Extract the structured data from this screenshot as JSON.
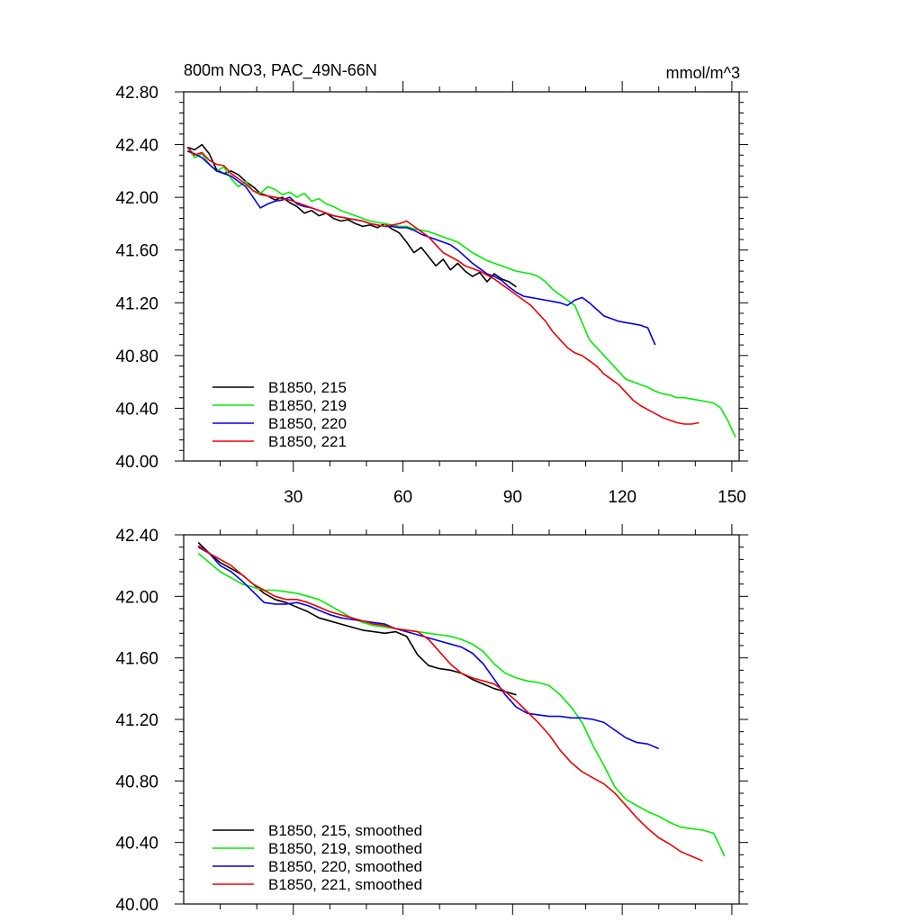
{
  "chart_data": [
    {
      "type": "line",
      "title": "800m NO3, PAC_49N-66N",
      "units": "mmol/m^3",
      "xlim": [
        0,
        152
      ],
      "ylim": [
        40.0,
        42.8
      ],
      "yticks": [
        "40.00",
        "40.40",
        "40.80",
        "41.20",
        "41.60",
        "42.00",
        "42.40",
        "42.80"
      ],
      "xticks": [
        "30",
        "60",
        "90",
        "120",
        "150"
      ],
      "legend_position": "bottom-left",
      "series": [
        {
          "name": "B1850, 215",
          "color": "#000000",
          "x": [
            1,
            3,
            5,
            7,
            9,
            11,
            13,
            15,
            17,
            19,
            21,
            23,
            25,
            27,
            29,
            31,
            33,
            35,
            37,
            39,
            41,
            43,
            45,
            47,
            49,
            51,
            53,
            55,
            57,
            59,
            61,
            63,
            65,
            67,
            69,
            71,
            73,
            75,
            77,
            79,
            81,
            83,
            85,
            87,
            89,
            91
          ],
          "y": [
            42.38,
            42.36,
            42.4,
            42.33,
            42.21,
            42.18,
            42.2,
            42.17,
            42.12,
            42.08,
            42.03,
            42.01,
            41.98,
            42.0,
            41.96,
            41.93,
            41.88,
            41.9,
            41.86,
            41.88,
            41.84,
            41.82,
            41.83,
            41.8,
            41.78,
            41.79,
            41.77,
            41.8,
            41.76,
            41.73,
            41.66,
            41.58,
            41.62,
            41.55,
            41.48,
            41.53,
            41.45,
            41.5,
            41.44,
            41.4,
            41.43,
            41.36,
            41.42,
            41.38,
            41.36,
            41.32
          ]
        },
        {
          "name": "B1850, 219",
          "color": "#00ee00",
          "x": [
            1,
            3,
            5,
            7,
            9,
            11,
            13,
            15,
            17,
            19,
            21,
            23,
            25,
            27,
            29,
            31,
            33,
            35,
            37,
            39,
            41,
            43,
            45,
            47,
            49,
            51,
            53,
            55,
            57,
            59,
            61,
            63,
            65,
            67,
            69,
            71,
            73,
            75,
            77,
            79,
            81,
            83,
            85,
            87,
            89,
            91,
            93,
            95,
            97,
            99,
            101,
            103,
            105,
            107,
            109,
            111,
            113,
            115,
            117,
            119,
            121,
            123,
            125,
            127,
            129,
            131,
            133,
            135,
            137,
            139,
            141,
            143,
            145,
            147,
            149,
            151
          ],
          "y": [
            42.38,
            42.3,
            42.33,
            42.25,
            42.2,
            42.23,
            42.14,
            42.08,
            42.12,
            42.05,
            42.03,
            42.08,
            42.06,
            42.02,
            42.04,
            42.0,
            42.03,
            41.97,
            41.99,
            41.95,
            41.93,
            41.9,
            41.88,
            41.86,
            41.84,
            41.82,
            41.81,
            41.8,
            41.79,
            41.78,
            41.78,
            41.76,
            41.75,
            41.74,
            41.72,
            41.7,
            41.68,
            41.66,
            41.62,
            41.58,
            41.55,
            41.52,
            41.5,
            41.48,
            41.46,
            41.44,
            41.43,
            41.42,
            41.4,
            41.36,
            41.3,
            41.26,
            41.22,
            41.18,
            41.05,
            40.92,
            40.86,
            40.8,
            40.74,
            40.68,
            40.62,
            40.6,
            40.58,
            40.56,
            40.53,
            40.51,
            40.5,
            40.48,
            40.48,
            40.47,
            40.46,
            40.45,
            40.44,
            40.4,
            40.3,
            40.18
          ]
        },
        {
          "name": "B1850, 220",
          "color": "#0000ee",
          "x": [
            1,
            3,
            5,
            7,
            9,
            11,
            13,
            15,
            17,
            19,
            21,
            23,
            25,
            27,
            29,
            31,
            33,
            35,
            37,
            39,
            41,
            43,
            45,
            47,
            49,
            51,
            53,
            55,
            57,
            59,
            61,
            63,
            65,
            67,
            69,
            71,
            73,
            75,
            77,
            79,
            81,
            83,
            85,
            87,
            89,
            91,
            93,
            95,
            97,
            99,
            101,
            103,
            105,
            107,
            109,
            111,
            113,
            115,
            117,
            119,
            121,
            123,
            125,
            127,
            129
          ],
          "y": [
            42.35,
            42.33,
            42.3,
            42.25,
            42.2,
            42.18,
            42.16,
            42.12,
            42.08,
            42.0,
            41.92,
            41.95,
            41.97,
            41.98,
            42.0,
            41.95,
            41.93,
            41.92,
            41.9,
            41.88,
            41.86,
            41.85,
            41.84,
            41.83,
            41.82,
            41.8,
            41.79,
            41.78,
            41.78,
            41.77,
            41.77,
            41.75,
            41.72,
            41.7,
            41.68,
            41.66,
            41.64,
            41.6,
            41.55,
            41.5,
            41.46,
            41.42,
            41.4,
            41.37,
            41.32,
            41.28,
            41.25,
            41.24,
            41.23,
            41.22,
            41.21,
            41.2,
            41.18,
            41.22,
            41.24,
            41.2,
            41.15,
            41.1,
            41.08,
            41.06,
            41.05,
            41.04,
            41.03,
            41.01,
            40.88
          ]
        },
        {
          "name": "B1850, 221",
          "color": "#ee0000",
          "x": [
            1,
            3,
            5,
            7,
            9,
            11,
            13,
            15,
            17,
            19,
            21,
            23,
            25,
            27,
            29,
            31,
            33,
            35,
            37,
            39,
            41,
            43,
            45,
            47,
            49,
            51,
            53,
            55,
            57,
            59,
            61,
            63,
            65,
            67,
            69,
            71,
            73,
            75,
            77,
            79,
            81,
            83,
            85,
            87,
            89,
            91,
            93,
            95,
            97,
            99,
            101,
            103,
            105,
            107,
            109,
            111,
            113,
            115,
            117,
            119,
            121,
            123,
            125,
            127,
            129,
            131,
            133,
            135,
            137,
            139,
            141
          ],
          "y": [
            42.38,
            42.32,
            42.34,
            42.28,
            42.25,
            42.24,
            42.18,
            42.14,
            42.1,
            42.05,
            42.02,
            42.01,
            42.0,
            41.99,
            41.98,
            41.96,
            41.94,
            41.92,
            41.9,
            41.88,
            41.86,
            41.85,
            41.84,
            41.83,
            41.82,
            41.8,
            41.79,
            41.78,
            41.79,
            41.8,
            41.82,
            41.78,
            41.74,
            41.7,
            41.64,
            41.58,
            41.55,
            41.52,
            41.48,
            41.46,
            41.44,
            41.41,
            41.38,
            41.34,
            41.3,
            41.26,
            41.22,
            41.18,
            41.12,
            41.06,
            40.98,
            40.92,
            40.86,
            40.82,
            40.8,
            40.76,
            40.72,
            40.66,
            40.62,
            40.58,
            40.52,
            40.46,
            40.42,
            40.39,
            40.36,
            40.33,
            40.31,
            40.29,
            40.28,
            40.28,
            40.29
          ]
        }
      ]
    },
    {
      "type": "line",
      "title": "",
      "xlim": [
        0,
        152
      ],
      "ylim": [
        40.0,
        42.4
      ],
      "yticks": [
        "40.00",
        "40.40",
        "40.80",
        "41.20",
        "41.60",
        "42.00",
        "42.40"
      ],
      "xticks": [],
      "legend_position": "bottom-left",
      "series": [
        {
          "name": "B1850, 215, smoothed",
          "color": "#000000",
          "x": [
            4,
            7,
            10,
            13,
            16,
            19,
            22,
            25,
            28,
            31,
            34,
            37,
            40,
            43,
            46,
            49,
            52,
            55,
            58,
            61,
            64,
            67,
            70,
            73,
            76,
            79,
            82,
            85,
            88,
            91
          ],
          "y": [
            42.35,
            42.28,
            42.22,
            42.18,
            42.14,
            42.08,
            42.02,
            41.98,
            41.96,
            41.93,
            41.9,
            41.86,
            41.84,
            41.82,
            41.8,
            41.78,
            41.77,
            41.76,
            41.77,
            41.74,
            41.62,
            41.55,
            41.53,
            41.52,
            41.5,
            41.46,
            41.43,
            41.4,
            41.38,
            41.36
          ]
        },
        {
          "name": "B1850, 219, smoothed",
          "color": "#00ee00",
          "x": [
            4,
            7,
            10,
            13,
            16,
            19,
            22,
            25,
            28,
            31,
            34,
            37,
            40,
            43,
            46,
            49,
            52,
            55,
            58,
            61,
            64,
            67,
            70,
            73,
            76,
            79,
            82,
            85,
            88,
            91,
            94,
            97,
            100,
            103,
            106,
            109,
            112,
            115,
            118,
            121,
            124,
            127,
            130,
            133,
            136,
            139,
            142,
            145,
            148
          ],
          "y": [
            42.28,
            42.22,
            42.16,
            42.12,
            42.08,
            42.06,
            42.04,
            42.04,
            42.03,
            42.02,
            42.0,
            41.98,
            41.94,
            41.9,
            41.86,
            41.83,
            41.81,
            41.8,
            41.79,
            41.78,
            41.77,
            41.76,
            41.75,
            41.74,
            41.72,
            41.69,
            41.64,
            41.56,
            41.5,
            41.47,
            41.45,
            41.44,
            41.42,
            41.36,
            41.28,
            41.18,
            41.03,
            40.9,
            40.76,
            40.68,
            40.64,
            40.6,
            40.57,
            40.53,
            40.5,
            40.49,
            40.48,
            40.46,
            40.31
          ]
        },
        {
          "name": "B1850, 220, smoothed",
          "color": "#0000ee",
          "x": [
            4,
            7,
            10,
            13,
            16,
            19,
            22,
            25,
            28,
            31,
            34,
            37,
            40,
            43,
            46,
            49,
            52,
            55,
            58,
            61,
            64,
            67,
            70,
            73,
            76,
            79,
            82,
            85,
            88,
            91,
            94,
            97,
            100,
            103,
            106,
            109,
            112,
            115,
            118,
            121,
            124,
            127,
            130
          ],
          "y": [
            42.32,
            42.28,
            42.2,
            42.16,
            42.1,
            42.03,
            41.96,
            41.95,
            41.95,
            41.96,
            41.94,
            41.91,
            41.88,
            41.86,
            41.85,
            41.84,
            41.83,
            41.82,
            41.79,
            41.77,
            41.75,
            41.73,
            41.71,
            41.69,
            41.67,
            41.63,
            41.56,
            41.46,
            41.36,
            41.28,
            41.24,
            41.23,
            41.22,
            41.22,
            41.21,
            41.21,
            41.2,
            41.18,
            41.13,
            41.08,
            41.05,
            41.04,
            41.01
          ]
        },
        {
          "name": "B1850, 221, smoothed",
          "color": "#ee0000",
          "x": [
            4,
            7,
            10,
            13,
            16,
            19,
            22,
            25,
            28,
            31,
            34,
            37,
            40,
            43,
            46,
            49,
            52,
            55,
            58,
            61,
            64,
            67,
            70,
            73,
            76,
            79,
            82,
            85,
            88,
            91,
            94,
            97,
            100,
            103,
            106,
            109,
            112,
            115,
            118,
            121,
            124,
            127,
            130,
            133,
            136,
            139,
            142
          ],
          "y": [
            42.33,
            42.28,
            42.24,
            42.2,
            42.14,
            42.08,
            42.04,
            42.0,
            41.98,
            41.98,
            41.96,
            41.93,
            41.9,
            41.88,
            41.86,
            41.84,
            41.82,
            41.81,
            41.79,
            41.78,
            41.77,
            41.72,
            41.64,
            41.56,
            41.5,
            41.47,
            41.45,
            41.43,
            41.38,
            41.32,
            41.25,
            41.18,
            41.1,
            41.0,
            40.92,
            40.86,
            40.82,
            40.78,
            40.72,
            40.64,
            40.56,
            40.49,
            40.43,
            40.39,
            40.34,
            40.31,
            40.28
          ]
        }
      ]
    }
  ]
}
